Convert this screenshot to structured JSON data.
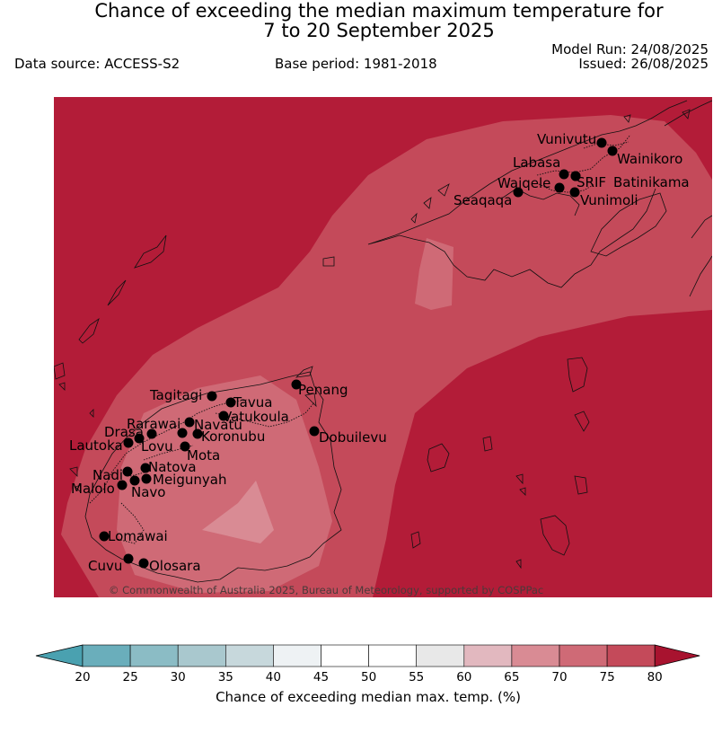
{
  "title_line1": "Chance of exceeding the median maximum temperature for",
  "title_line2": "7 to 20 September 2025",
  "data_source": "Data source: ACCESS-S2",
  "base_period": "Base period: 1981-2018",
  "model_run": "Model Run: 24/08/2025",
  "issued": "Issued: 26/08/2025",
  "copyright": "© Commonwealth of Australia 2025, Bureau of Meteorology, supported by COSPPac",
  "colors": {
    "c75_80": "#b31c38",
    "c70_75": "#c44a5a",
    "c65_70": "#cf6a76",
    "c60_65": "#d98b94",
    "cb_bins": [
      "#6aaebb",
      "#8bbcc5",
      "#a9c8ce",
      "#c7d8dc",
      "#eef2f4",
      "#ffffff",
      "#ffffff",
      "#e8e8e8",
      "#e2b8bf",
      "#d98b94",
      "#cf6a76",
      "#c44a5a"
    ],
    "cb_low": "#4aa1b0",
    "cb_high": "#a8132f"
  },
  "places": [
    {
      "name": "Vunivutu"
    },
    {
      "name": "Wainikoro"
    },
    {
      "name": "Labasa"
    },
    {
      "name": "Waiqele"
    },
    {
      "name": "SRIF"
    },
    {
      "name": "Batinikama"
    },
    {
      "name": "Seaqaqa"
    },
    {
      "name": "Vunimoli"
    },
    {
      "name": "Penang"
    },
    {
      "name": "Tagitagi"
    },
    {
      "name": "Tavua"
    },
    {
      "name": "Vatukoula"
    },
    {
      "name": "Rarawai"
    },
    {
      "name": "Navatu"
    },
    {
      "name": "Drasa"
    },
    {
      "name": "Koronubu"
    },
    {
      "name": "Lautoka"
    },
    {
      "name": "Lovu"
    },
    {
      "name": "Mota"
    },
    {
      "name": "Dobuilevu"
    },
    {
      "name": "Natova"
    },
    {
      "name": "Nadi"
    },
    {
      "name": "Meigunyah"
    },
    {
      "name": "Malolo"
    },
    {
      "name": "Navo"
    },
    {
      "name": "Lomawai"
    },
    {
      "name": "Cuvu"
    },
    {
      "name": "Olosara"
    }
  ],
  "colorbar": {
    "ticks": [
      "20",
      "25",
      "30",
      "35",
      "40",
      "45",
      "50",
      "55",
      "60",
      "65",
      "70",
      "75",
      "80"
    ],
    "label": "Chance of exceeding median max. temp. (%)"
  }
}
